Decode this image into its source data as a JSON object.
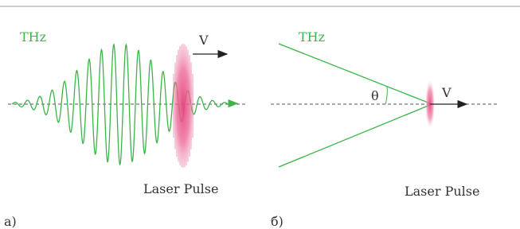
{
  "panel_a": {
    "wave_label": "THz",
    "velocity_label": "V",
    "pulse_label": "Laser Pulse",
    "caption": "а)"
  },
  "panel_b": {
    "wave_label": "THz",
    "angle_label": "θ",
    "velocity_label": "V",
    "pulse_label": "Laser Pulse",
    "caption": "б)"
  }
}
